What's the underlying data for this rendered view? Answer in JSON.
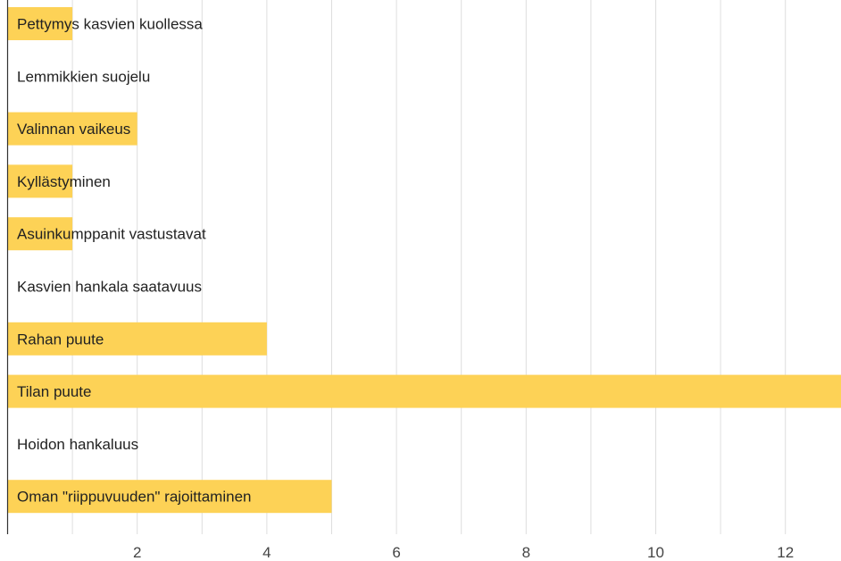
{
  "chart_data": {
    "type": "bar",
    "orientation": "horizontal",
    "categories": [
      "Pettymys kasvien kuollessa",
      "Lemmikkien suojelu",
      "Valinnan vaikeus",
      "Kyllästyminen",
      "Asuinkumppanit vastustavat",
      "Kasvien hankala saatavuus",
      "Rahan puute",
      "Tilan puute",
      "Hoidon hankaluus",
      "Oman \"riippuvuuden\" rajoittaminen"
    ],
    "values": [
      1,
      0,
      2,
      1,
      1,
      0,
      4,
      13,
      0,
      5
    ],
    "xlim": [
      0,
      13
    ],
    "x_ticks": [
      2,
      4,
      6,
      8,
      10,
      12
    ],
    "x_tick_labels": [
      "2",
      "4",
      "6",
      "8",
      "10",
      "12"
    ],
    "minor_grid_step": 1,
    "grid": true,
    "bar_color": "#fdd256",
    "title": "",
    "xlabel": "",
    "ylabel": ""
  }
}
